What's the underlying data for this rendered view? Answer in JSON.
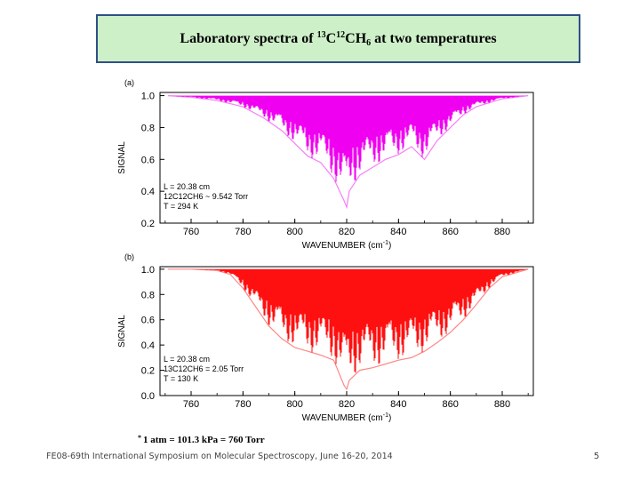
{
  "slide": {
    "title_prefix": "Laboratory spectra of ",
    "title_iso1": "13",
    "title_c1": "C",
    "title_iso2": "12",
    "title_ch": "CH",
    "title_sub": "6",
    "title_suffix": " at two temperatures",
    "title_bg": "#cdf0c8",
    "title_border": "#2f4f86",
    "note_star": "*",
    "note": "1 atm = 101.3 kPa = 760 Torr",
    "footer": "FE08-69th International Symposium on Molecular Spectroscopy, June 16-20, 2014",
    "page_number": "5"
  },
  "chart_data": [
    {
      "type": "line",
      "panel_label": "(a)",
      "xlabel": "WAVENUMBER (cm",
      "xlabel_sup": "-1",
      "xlabel_close": ")",
      "ylabel": "SIGNAL",
      "xlim": [
        748,
        892
      ],
      "ylim": [
        0.2,
        1.02
      ],
      "xticks": [
        "760",
        "780",
        "800",
        "820",
        "840",
        "860",
        "880"
      ],
      "yticks": [
        "0.2",
        "0.4",
        "0.6",
        "0.8",
        "1.0"
      ],
      "color": "#f000f0",
      "annotations": [
        "L = 20.38 cm",
        "12C12CH6 ~ 9.542 Torr",
        "T = 294 K"
      ],
      "series": [
        {
          "x": [
            751,
            760,
            770,
            780,
            788,
            795,
            800,
            805,
            810,
            815,
            819,
            820,
            821,
            825,
            830,
            835,
            840,
            845,
            850,
            855,
            860,
            865,
            870,
            880,
            890
          ],
          "y": [
            1.0,
            0.99,
            0.97,
            0.93,
            0.86,
            0.78,
            0.7,
            0.62,
            0.58,
            0.48,
            0.34,
            0.3,
            0.4,
            0.5,
            0.55,
            0.6,
            0.63,
            0.68,
            0.6,
            0.72,
            0.8,
            0.88,
            0.93,
            0.98,
            1.0
          ]
        }
      ]
    },
    {
      "type": "line",
      "panel_label": "(b)",
      "xlabel": "WAVENUMBER (cm",
      "xlabel_sup": "-1",
      "xlabel_close": ")",
      "ylabel": "SIGNAL",
      "xlim": [
        748,
        892
      ],
      "ylim": [
        0.0,
        1.02
      ],
      "xticks": [
        "760",
        "780",
        "800",
        "820",
        "840",
        "860",
        "880"
      ],
      "yticks": [
        "0.0",
        "0.2",
        "0.4",
        "0.6",
        "0.8",
        "1.0"
      ],
      "color": "#ff1010",
      "annotations": [
        "L = 20.38 cm",
        "13C12CH6 = 2.05 Torr",
        "T = 130 K"
      ],
      "series": [
        {
          "x": [
            751,
            760,
            770,
            775,
            780,
            785,
            790,
            795,
            800,
            805,
            810,
            815,
            819,
            820,
            821,
            825,
            830,
            835,
            840,
            845,
            850,
            855,
            860,
            865,
            870,
            875,
            880,
            890
          ],
          "y": [
            1.0,
            1.0,
            0.99,
            0.96,
            0.85,
            0.7,
            0.55,
            0.45,
            0.38,
            0.35,
            0.32,
            0.28,
            0.08,
            0.05,
            0.12,
            0.2,
            0.22,
            0.25,
            0.28,
            0.3,
            0.35,
            0.42,
            0.5,
            0.6,
            0.72,
            0.85,
            0.94,
            1.0
          ]
        }
      ]
    }
  ]
}
